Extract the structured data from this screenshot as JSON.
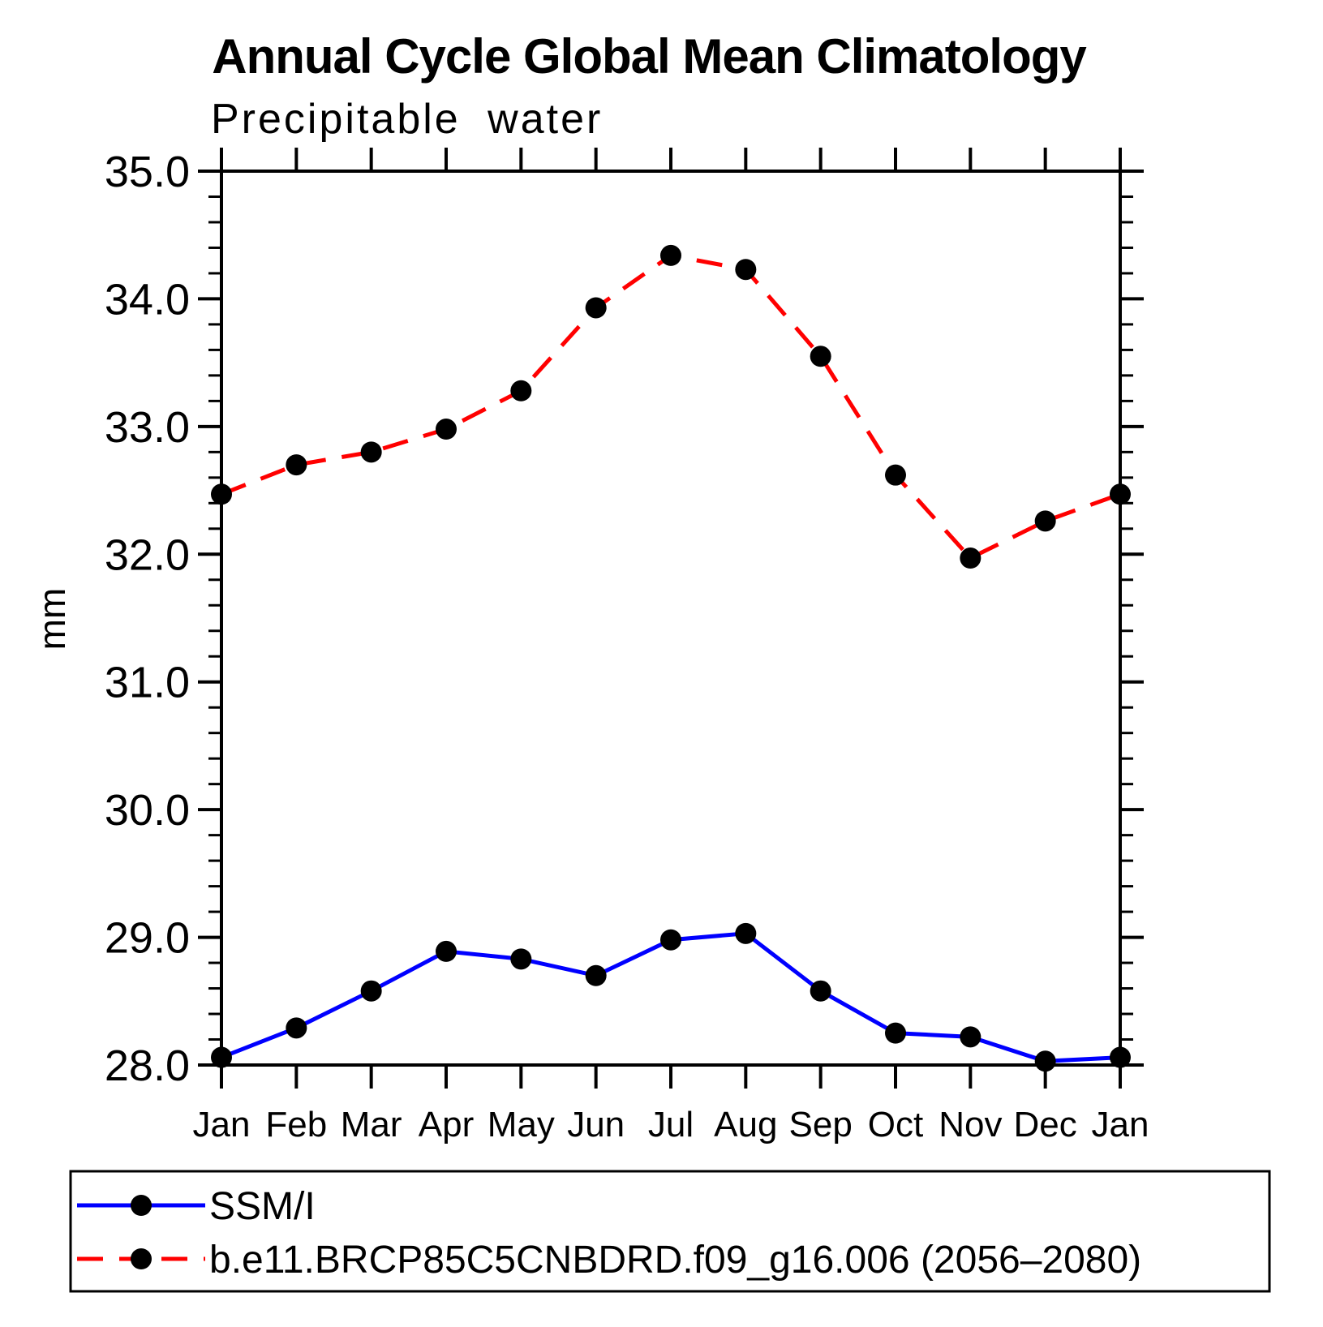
{
  "chart_data": {
    "type": "line",
    "title": "Annual Cycle Global Mean Climatology",
    "subtitle": "Precipitable water",
    "ylabel": "mm",
    "xlabel": "",
    "categories": [
      "Jan",
      "Feb",
      "Mar",
      "Apr",
      "May",
      "Jun",
      "Jul",
      "Aug",
      "Sep",
      "Oct",
      "Nov",
      "Dec",
      "Jan"
    ],
    "ylim": [
      28.0,
      35.0
    ],
    "ytick_major_step": 1.0,
    "ytick_minor_step": 0.2,
    "ytick_labels": [
      "35.0",
      "34.0",
      "33.0",
      "32.0",
      "31.0",
      "30.0",
      "29.0",
      "28.0"
    ],
    "grid": false,
    "legend_position": "bottom",
    "axis_color": "#000000",
    "marker_color": "#000000",
    "series": [
      {
        "name": "SSM/I",
        "color": "#0000ff",
        "style": "solid",
        "marker": "filled-circle",
        "values": [
          28.06,
          28.29,
          28.58,
          28.89,
          28.83,
          28.7,
          28.98,
          29.03,
          28.58,
          28.25,
          28.22,
          28.03,
          28.06
        ]
      },
      {
        "name": "b.e11.BRCP85C5CNBDRD.f09_g16.006 (2056–2080)",
        "color": "#ff0000",
        "style": "dashed",
        "marker": "filled-circle",
        "values": [
          32.47,
          32.7,
          32.8,
          32.98,
          33.28,
          33.93,
          34.34,
          34.23,
          33.55,
          32.62,
          31.97,
          32.26,
          32.47
        ]
      }
    ]
  }
}
